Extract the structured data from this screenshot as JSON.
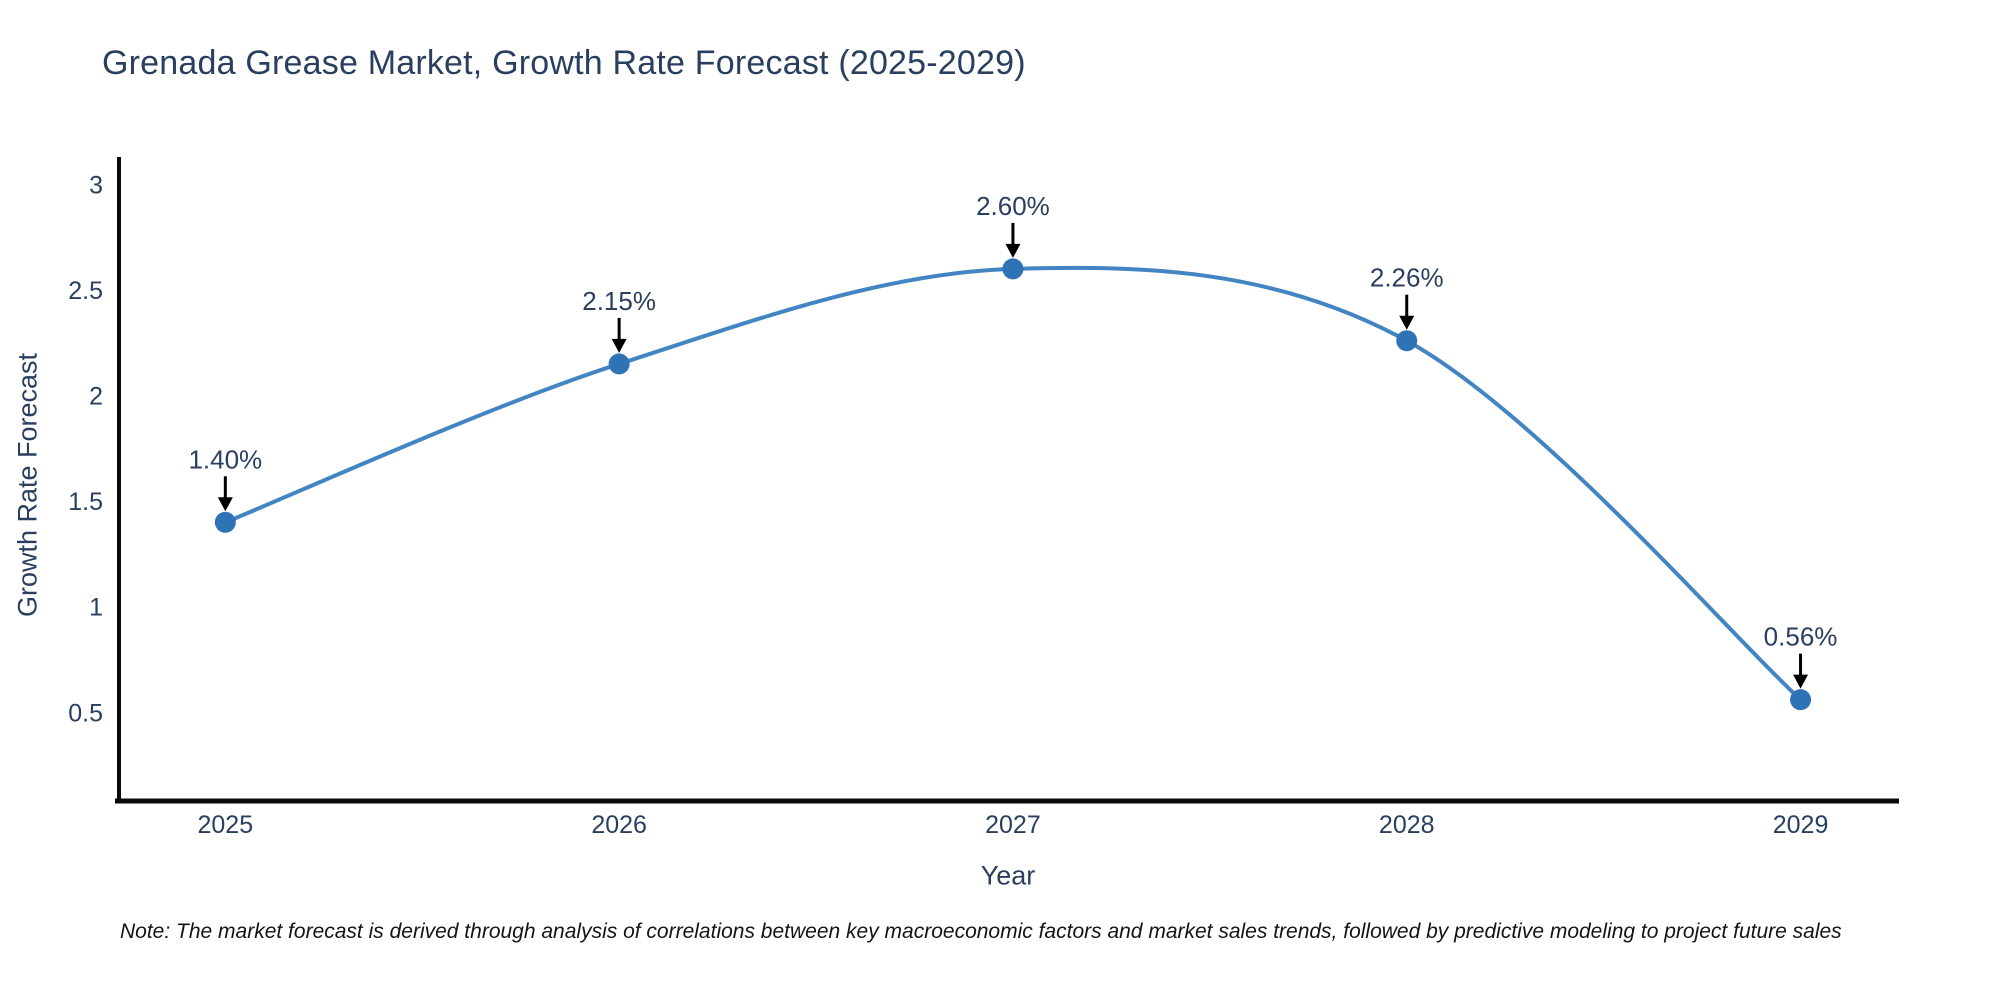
{
  "figure": {
    "note": "Note: The market forecast is derived through analysis of correlations between key macroeconomic factors and market sales trends, followed by predictive modeling to project future sales"
  },
  "chart_data": {
    "type": "line",
    "title": "Grenada Grease Market, Growth Rate Forecast (2025-2029)",
    "xlabel": "Year",
    "ylabel": "Growth Rate Forecast",
    "x": [
      2025,
      2026,
      2027,
      2028,
      2029
    ],
    "values": [
      1.4,
      2.15,
      2.6,
      2.26,
      0.56
    ],
    "point_labels": [
      "1.40%",
      "2.15%",
      "2.60%",
      "2.26%",
      "0.56%"
    ],
    "xtick_labels": [
      "2025",
      "2026",
      "2027",
      "2028",
      "2029"
    ],
    "ytick_values": [
      0.5,
      1,
      1.5,
      2,
      2.5,
      3
    ],
    "ytick_labels": [
      "0.5",
      "1",
      "1.5",
      "2",
      "2.5",
      "3"
    ],
    "xlim": [
      2024.73,
      2029.25
    ],
    "ylim": [
      0.08,
      3.13
    ],
    "line_shape": "spline",
    "grid": false,
    "legend": "none",
    "colors": {
      "line": "#4285c2",
      "marker": "#2e73b5",
      "axis": "#0a0a0a",
      "text": "#2a3f5f",
      "arrow": "#000000"
    }
  }
}
